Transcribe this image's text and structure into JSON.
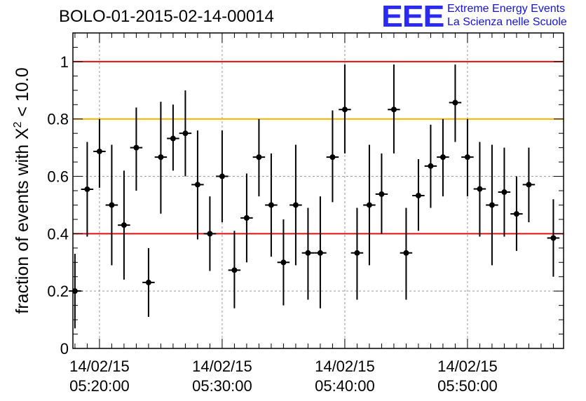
{
  "header": {
    "title": "BOLO-01-2015-02-14-00014",
    "logo_mark": "EEE",
    "logo_line1": "Extreme Energy Events",
    "logo_line2": "La Scienza nelle Scuole"
  },
  "chart_data": {
    "type": "scatter",
    "title": "BOLO-01-2015-02-14-00014",
    "xlabel": "",
    "ylabel": "fraction of events with X² < 10.0",
    "ylabel_base": "fraction of events with X",
    "ylabel_sup": "2",
    "ylabel_tail": " < 10.0",
    "ylim": [
      0,
      1.1
    ],
    "xlim": [
      "05:17:50",
      "05:57:50"
    ],
    "yticks": [
      "0",
      "0.2",
      "0.4",
      "0.6",
      "0.8",
      "1"
    ],
    "ytick_values": [
      0,
      0.2,
      0.4,
      0.6,
      0.8,
      1
    ],
    "xticks": [
      {
        "time": "05:20:00",
        "date_label": "14/02/15",
        "time_label": "05:20:00"
      },
      {
        "time": "05:30:00",
        "date_label": "14/02/15",
        "time_label": "05:30:00"
      },
      {
        "time": "05:40:00",
        "date_label": "14/02/15",
        "time_label": "05:40:00"
      },
      {
        "time": "05:50:00",
        "date_label": "14/02/15",
        "time_label": "05:50:00"
      }
    ],
    "grid": true,
    "reference_lines": [
      {
        "y": 1.0,
        "color": "#e01010"
      },
      {
        "y": 0.8,
        "color": "#f0b400"
      },
      {
        "y": 0.4,
        "color": "#e01010"
      }
    ],
    "bin_width_minutes": 1,
    "points": [
      {
        "x": "05:18:00",
        "y": 0.2,
        "lo": 0.07,
        "hi": 0.33
      },
      {
        "x": "05:19:00",
        "y": 0.555,
        "lo": 0.39,
        "hi": 0.72
      },
      {
        "x": "05:20:00",
        "y": 0.687,
        "lo": 0.56,
        "hi": 0.8
      },
      {
        "x": "05:21:00",
        "y": 0.5,
        "lo": 0.29,
        "hi": 0.71
      },
      {
        "x": "05:22:00",
        "y": 0.43,
        "lo": 0.24,
        "hi": 0.62
      },
      {
        "x": "05:23:00",
        "y": 0.7,
        "lo": 0.55,
        "hi": 0.84
      },
      {
        "x": "05:24:00",
        "y": 0.23,
        "lo": 0.11,
        "hi": 0.35
      },
      {
        "x": "05:25:00",
        "y": 0.667,
        "lo": 0.47,
        "hi": 0.86
      },
      {
        "x": "05:26:00",
        "y": 0.732,
        "lo": 0.62,
        "hi": 0.85
      },
      {
        "x": "05:27:00",
        "y": 0.75,
        "lo": 0.6,
        "hi": 0.9
      },
      {
        "x": "05:28:00",
        "y": 0.571,
        "lo": 0.38,
        "hi": 0.76
      },
      {
        "x": "05:29:00",
        "y": 0.4,
        "lo": 0.27,
        "hi": 0.53
      },
      {
        "x": "05:30:00",
        "y": 0.6,
        "lo": 0.44,
        "hi": 0.76
      },
      {
        "x": "05:31:00",
        "y": 0.273,
        "lo": 0.14,
        "hi": 0.41
      },
      {
        "x": "05:32:00",
        "y": 0.455,
        "lo": 0.3,
        "hi": 0.61
      },
      {
        "x": "05:33:00",
        "y": 0.667,
        "lo": 0.53,
        "hi": 0.8
      },
      {
        "x": "05:34:00",
        "y": 0.5,
        "lo": 0.32,
        "hi": 0.68
      },
      {
        "x": "05:35:00",
        "y": 0.3,
        "lo": 0.15,
        "hi": 0.45
      },
      {
        "x": "05:36:00",
        "y": 0.5,
        "lo": 0.29,
        "hi": 0.71
      },
      {
        "x": "05:37:00",
        "y": 0.333,
        "lo": 0.17,
        "hi": 0.49
      },
      {
        "x": "05:38:00",
        "y": 0.333,
        "lo": 0.14,
        "hi": 0.53
      },
      {
        "x": "05:39:00",
        "y": 0.667,
        "lo": 0.51,
        "hi": 0.83
      },
      {
        "x": "05:40:00",
        "y": 0.833,
        "lo": 0.68,
        "hi": 0.99
      },
      {
        "x": "05:41:00",
        "y": 0.333,
        "lo": 0.17,
        "hi": 0.49
      },
      {
        "x": "05:42:00",
        "y": 0.5,
        "lo": 0.29,
        "hi": 0.71
      },
      {
        "x": "05:43:00",
        "y": 0.538,
        "lo": 0.4,
        "hi": 0.68
      },
      {
        "x": "05:44:00",
        "y": 0.833,
        "lo": 0.68,
        "hi": 0.99
      },
      {
        "x": "05:45:00",
        "y": 0.333,
        "lo": 0.17,
        "hi": 0.49
      },
      {
        "x": "05:46:00",
        "y": 0.533,
        "lo": 0.41,
        "hi": 0.66
      },
      {
        "x": "05:47:00",
        "y": 0.636,
        "lo": 0.49,
        "hi": 0.78
      },
      {
        "x": "05:48:00",
        "y": 0.667,
        "lo": 0.53,
        "hi": 0.8
      },
      {
        "x": "05:49:00",
        "y": 0.857,
        "lo": 0.72,
        "hi": 0.99
      },
      {
        "x": "05:50:00",
        "y": 0.667,
        "lo": 0.53,
        "hi": 0.8
      },
      {
        "x": "05:51:00",
        "y": 0.556,
        "lo": 0.39,
        "hi": 0.72
      },
      {
        "x": "05:52:00",
        "y": 0.5,
        "lo": 0.29,
        "hi": 0.71
      },
      {
        "x": "05:53:00",
        "y": 0.545,
        "lo": 0.39,
        "hi": 0.7
      },
      {
        "x": "05:54:00",
        "y": 0.469,
        "lo": 0.34,
        "hi": 0.6
      },
      {
        "x": "05:55:00",
        "y": 0.571,
        "lo": 0.44,
        "hi": 0.7
      },
      {
        "x": "05:57:00",
        "y": 0.385,
        "lo": 0.25,
        "hi": 0.52
      }
    ],
    "colors": {
      "marker": "#000000",
      "grid": "#9a9a9a",
      "ref_red": "#e01010",
      "ref_yellow": "#f0b400",
      "logo_blue": "#2a2af0"
    }
  }
}
